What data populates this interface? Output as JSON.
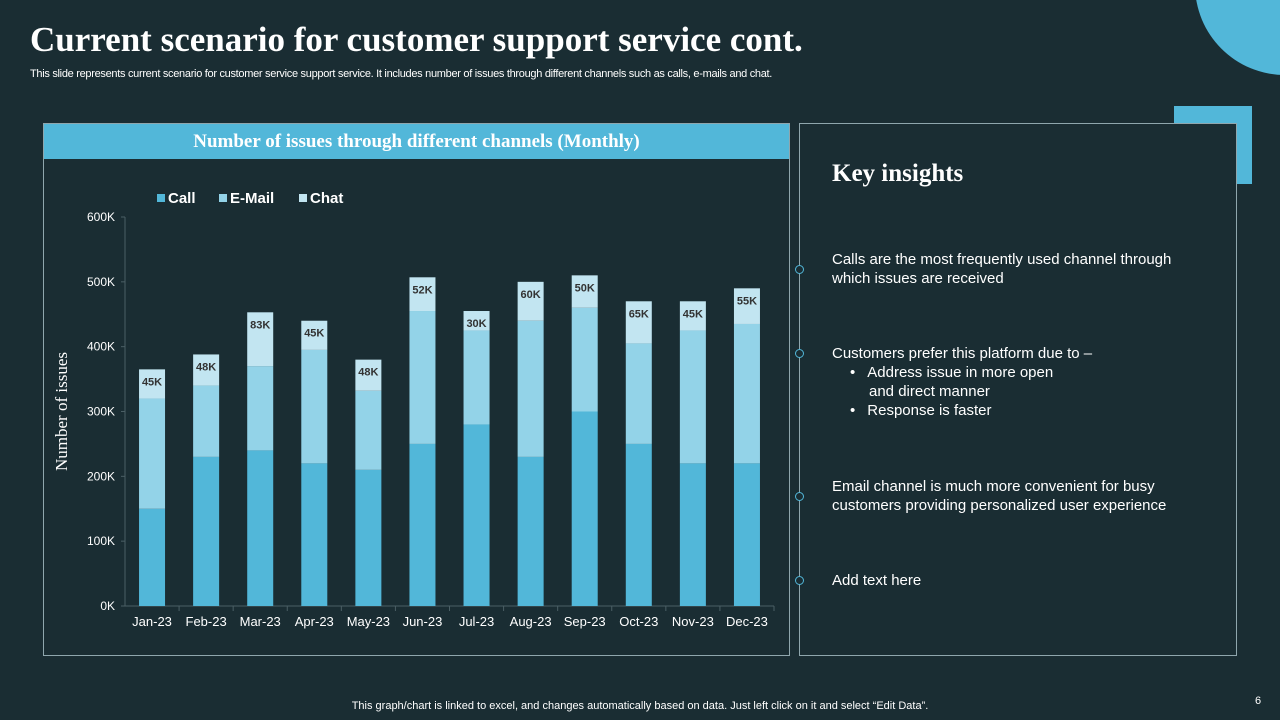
{
  "slide": {
    "title": "Current scenario for customer support service cont.",
    "subtitle": "This slide represents current scenario for customer service support service. It includes number of issues through different channels such as calls, e-mails and chat.",
    "footer": "This graph/chart is linked to excel,  and changes automatically based on data. Just left click on it and select “Edit Data”.",
    "page_number": "6"
  },
  "colors": {
    "background": "#1a2d33",
    "accent": "#52b7d9",
    "call": "#52b7d9",
    "email": "#93d3e8",
    "chat": "#c2e5f1"
  },
  "chart_data": {
    "type": "bar",
    "stacked": true,
    "title": "Number of  issues through different channels (Monthly)",
    "xlabel": "",
    "ylabel": "Number of  issues",
    "ylim": [
      0,
      600
    ],
    "y_ticks": [
      "0K",
      "100K",
      "200K",
      "300K",
      "400K",
      "500K",
      "600K"
    ],
    "y_tick_values": [
      0,
      100,
      200,
      300,
      400,
      500,
      600
    ],
    "unit": "K",
    "legend_position": "top-left",
    "grid": false,
    "categories": [
      "Jan-23",
      "Feb-23",
      "Mar-23",
      "Apr-23",
      "May-23",
      "Jun-23",
      "Jul-23",
      "Aug-23",
      "Sep-23",
      "Oct-23",
      "Nov-23",
      "Dec-23"
    ],
    "series": [
      {
        "name": "Call",
        "values": [
          150,
          230,
          240,
          220,
          210,
          250,
          280,
          230,
          300,
          250,
          220,
          220
        ]
      },
      {
        "name": "E-Mail",
        "values": [
          170,
          110,
          130,
          175,
          122,
          205,
          145,
          210,
          160,
          155,
          205,
          215
        ]
      },
      {
        "name": "Chat",
        "values": [
          45,
          48,
          83,
          45,
          48,
          52,
          30,
          60,
          50,
          65,
          45,
          55
        ],
        "data_labels": [
          "45K",
          "48K",
          "83K",
          "45K",
          "48K",
          "52K",
          "30K",
          "60K",
          "50K",
          "65K",
          "45K",
          "55K"
        ]
      }
    ]
  },
  "insights": {
    "title": "Key insights",
    "items": [
      {
        "text": "Calls are the most frequently  used channel through which issues are received"
      },
      {
        "text": "Customers prefer this platform due to –",
        "bullets": [
          {
            "line1": "Address issue in more open",
            "line2": "and direct manner"
          },
          {
            "line1": "Response is faster"
          }
        ]
      },
      {
        "text": "Email channel is much more convenient for busy customers  providing personalized user experience"
      },
      {
        "text": "Add text here"
      }
    ]
  }
}
